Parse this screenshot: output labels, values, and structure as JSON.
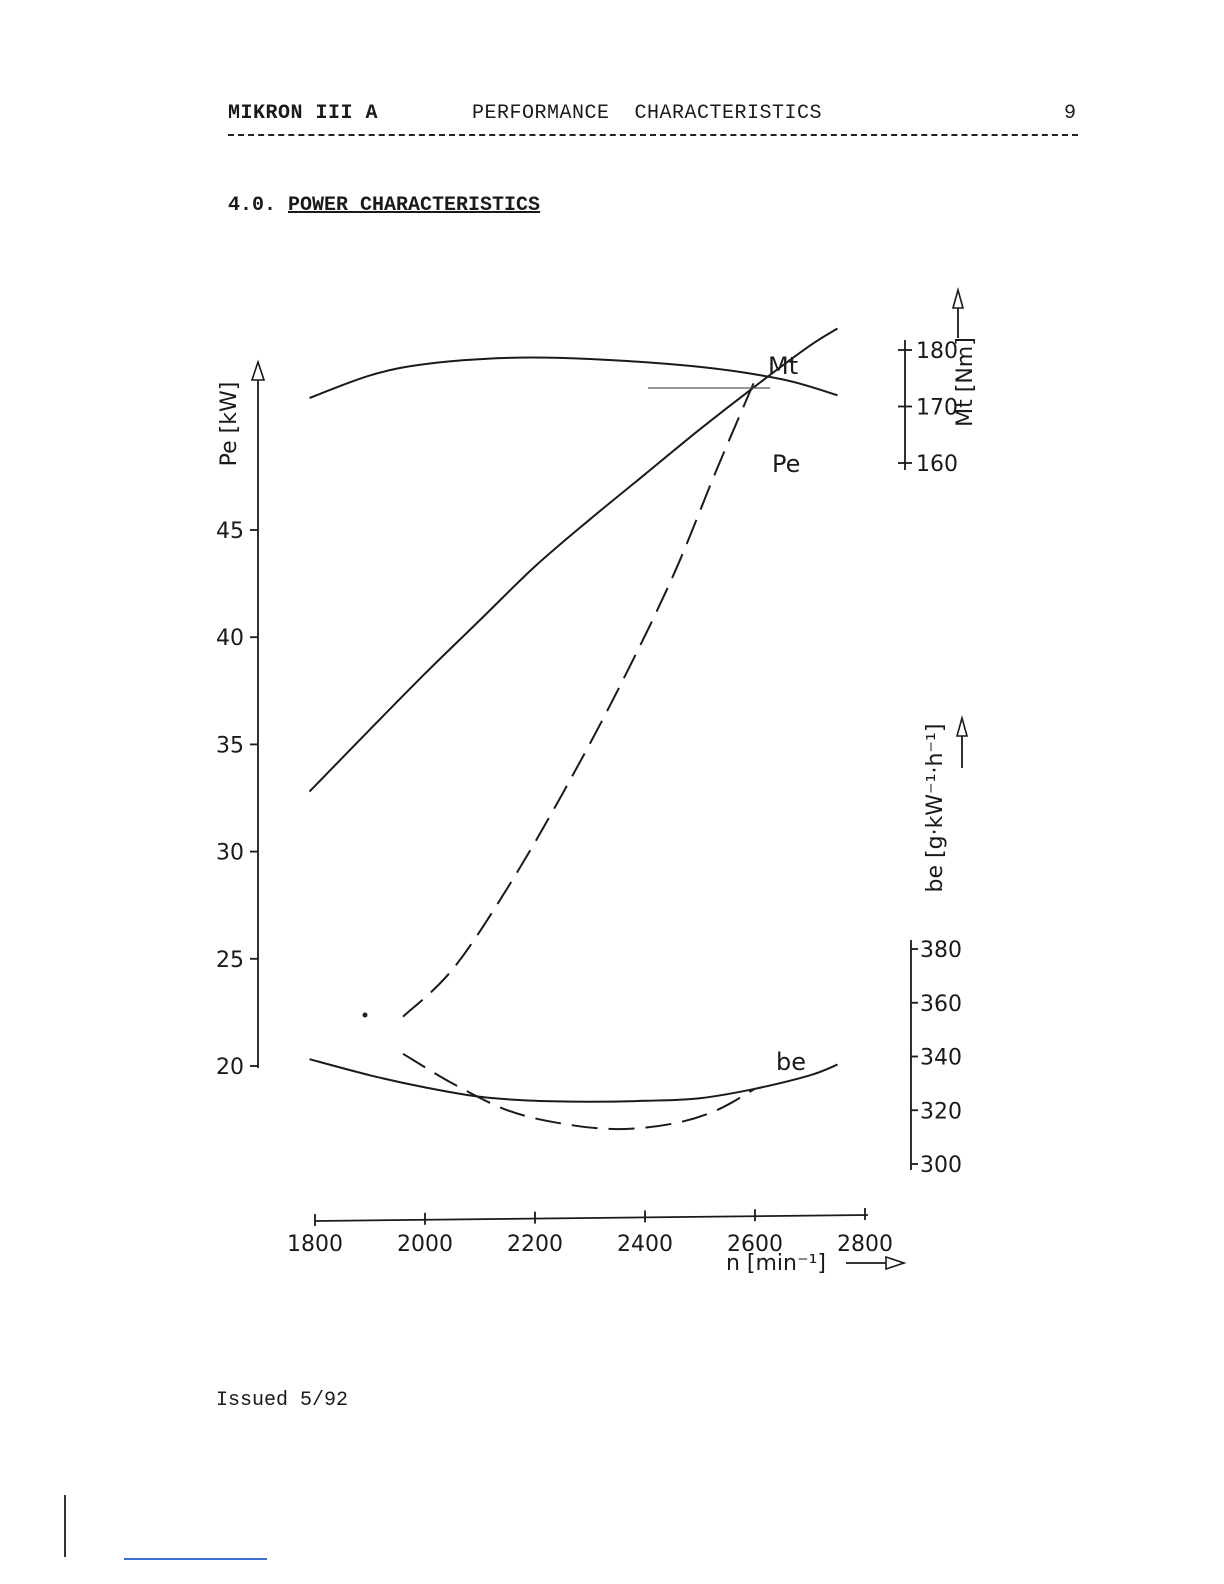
{
  "header": {
    "doc_title": "MIKRON III A",
    "section": "PERFORMANCE  CHARACTERISTICS",
    "page_number": "9"
  },
  "section_heading": {
    "number": "4.0.",
    "title": "POWER CHARACTERISTICS"
  },
  "footer": {
    "issued": "Issued 5/92"
  },
  "chart_data": {
    "type": "line",
    "x": {
      "label": "n [min⁻¹]",
      "ticks": [
        "1800",
        "2000",
        "2200",
        "2400",
        "2600",
        "2800"
      ],
      "range": [
        1800,
        2800
      ]
    },
    "axes": {
      "power": {
        "label": "Pe [kW]",
        "ticks": [
          "20",
          "25",
          "30",
          "35",
          "40",
          "45"
        ],
        "range": [
          20,
          50
        ],
        "side": "left"
      },
      "torque": {
        "label": "Mt [Nm]",
        "ticks": [
          "160",
          "170",
          "180"
        ],
        "range": [
          160,
          182
        ],
        "side": "right-top"
      },
      "consumption": {
        "label": "be [g·kW⁻¹·h⁻¹]",
        "ticks": [
          "300",
          "320",
          "340",
          "360",
          "380"
        ],
        "range": [
          300,
          380
        ],
        "side": "right-bottom"
      }
    },
    "series": [
      {
        "name": "Mt",
        "axis": "torque",
        "style": "solid",
        "x": [
          1790,
          1900,
          2000,
          2150,
          2300,
          2500,
          2650,
          2750
        ],
        "y": [
          171.5,
          175.5,
          177.5,
          178.6,
          178.4,
          177.0,
          174.8,
          172.0
        ]
      },
      {
        "name": "Pe",
        "axis": "power",
        "style": "solid",
        "x": [
          1790,
          1900,
          2000,
          2100,
          2200,
          2300,
          2400,
          2500,
          2600,
          2700,
          2750
        ],
        "y": [
          32.8,
          35.7,
          38.3,
          40.8,
          43.3,
          45.5,
          47.6,
          49.7,
          51.7,
          53.6,
          54.4
        ]
      },
      {
        "name": "Pe",
        "axis": "power",
        "style": "dashed",
        "x": [
          1960,
          2050,
          2150,
          2250,
          2350,
          2450,
          2530,
          2600
        ],
        "y": [
          22.3,
          24.5,
          28.3,
          32.7,
          37.5,
          42.8,
          47.8,
          52.0
        ]
      },
      {
        "name": "be",
        "axis": "consumption",
        "style": "solid",
        "x": [
          1790,
          1900,
          2000,
          2100,
          2200,
          2300,
          2400,
          2500,
          2600,
          2700,
          2750
        ],
        "y": [
          339,
          333,
          328.5,
          325,
          323.5,
          323.2,
          323.5,
          324.5,
          328,
          333,
          337
        ]
      },
      {
        "name": "be",
        "axis": "consumption",
        "style": "dashed",
        "x": [
          1960,
          2050,
          2150,
          2250,
          2350,
          2450,
          2530,
          2600
        ],
        "y": [
          341,
          330,
          320,
          315,
          313,
          315,
          320,
          328
        ]
      }
    ],
    "labels": {
      "Mt": "Mt",
      "Pe": "Pe",
      "be": "be"
    },
    "grid": false
  }
}
